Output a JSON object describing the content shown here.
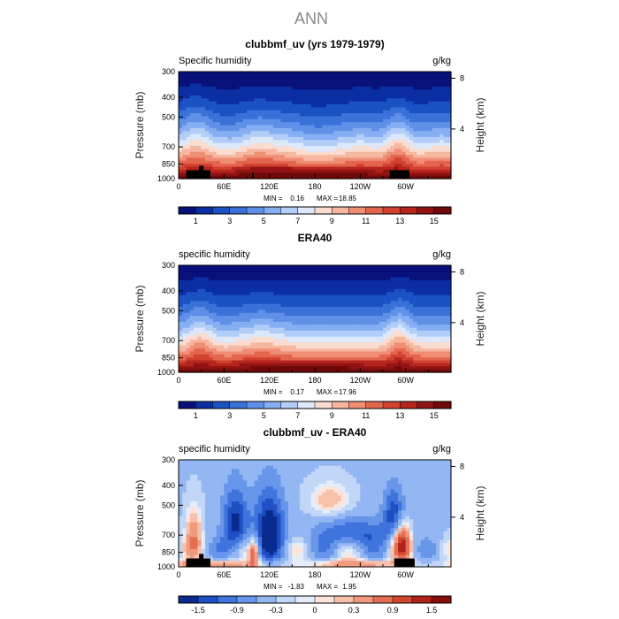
{
  "figure": {
    "title": "ANN"
  },
  "chart_data": [
    {
      "type": "heatmap",
      "title": "clubbmf_uv (yrs 1979-1979)",
      "field_label": "Specific humidity",
      "units": "g/kg",
      "ylabel": "Pressure (mb)",
      "ylabel_right": "Height (km)",
      "x_ticks": [
        "0",
        "60E",
        "120E",
        "180",
        "120W",
        "60W"
      ],
      "x_tick_values": [
        0,
        60,
        120,
        180,
        240,
        300
      ],
      "xlim": [
        0,
        360
      ],
      "y_ticks": [
        "300",
        "400",
        "500",
        "700",
        "850",
        "1000"
      ],
      "y_tick_values": [
        300,
        400,
        500,
        700,
        850,
        1000
      ],
      "ylim": [
        1000,
        300
      ],
      "right_ticks": [
        "8",
        "4"
      ],
      "right_tick_values": [
        8,
        4
      ],
      "stats": {
        "min_label": "MIN =",
        "min": "0.16",
        "max_label": "MAX =",
        "max": "18.85"
      },
      "colorbar_labels": [
        "1",
        "3",
        "5",
        "7",
        "9",
        "11",
        "13",
        "15"
      ],
      "colorbar_values": [
        1,
        3,
        5,
        7,
        9,
        11,
        13,
        15
      ],
      "colorbar_range": [
        0,
        16
      ],
      "terrain_blocks": [
        [
          10,
          42,
          1000,
          910
        ],
        [
          27,
          33,
          910,
          865
        ],
        [
          97,
          99,
          1000,
          935
        ],
        [
          279,
          305,
          1000,
          910
        ]
      ]
    },
    {
      "type": "heatmap",
      "title": "ERA40",
      "field_label": "specific humidity",
      "units": "g/kg",
      "ylabel": "Pressure (mb)",
      "ylabel_right": "Height (km)",
      "x_ticks": [
        "0",
        "60E",
        "120E",
        "180",
        "120W",
        "60W"
      ],
      "x_tick_values": [
        0,
        60,
        120,
        180,
        240,
        300
      ],
      "xlim": [
        0,
        360
      ],
      "y_ticks": [
        "300",
        "400",
        "500",
        "700",
        "850",
        "1000"
      ],
      "y_tick_values": [
        300,
        400,
        500,
        700,
        850,
        1000
      ],
      "ylim": [
        1000,
        300
      ],
      "right_ticks": [
        "8",
        "4"
      ],
      "right_tick_values": [
        8,
        4
      ],
      "stats": {
        "min_label": "MIN =",
        "min": "0.17",
        "max_label": "MAX =",
        "max": "17.96"
      },
      "colorbar_labels": [
        "1",
        "3",
        "5",
        "7",
        "9",
        "11",
        "13",
        "15"
      ],
      "colorbar_values": [
        1,
        3,
        5,
        7,
        9,
        11,
        13,
        15
      ],
      "colorbar_range": [
        0,
        16
      ],
      "terrain_blocks": []
    },
    {
      "type": "heatmap",
      "title": "clubbmf_uv - ERA40",
      "field_label": "specific humidity",
      "units": "g/kg",
      "ylabel": "Pressure (mb)",
      "ylabel_right": "Height (km)",
      "x_ticks": [
        "0",
        "60E",
        "120E",
        "180",
        "120W",
        "60W"
      ],
      "x_tick_values": [
        0,
        60,
        120,
        180,
        240,
        300
      ],
      "xlim": [
        0,
        360
      ],
      "y_ticks": [
        "300",
        "400",
        "500",
        "700",
        "850",
        "1000"
      ],
      "y_tick_values": [
        300,
        400,
        500,
        700,
        850,
        1000
      ],
      "ylim": [
        1000,
        300
      ],
      "right_ticks": [
        "8",
        "4"
      ],
      "right_tick_values": [
        8,
        4
      ],
      "stats": {
        "min_label": "MIN =",
        "min": "-1.83",
        "max_label": "MAX =",
        "max": "1.95"
      },
      "colorbar_labels": [
        "-1.5",
        "-0.9",
        "-0.3",
        "0",
        "0.3",
        "0.9",
        "1.5"
      ],
      "colorbar_values": [
        -1.5,
        -0.9,
        -0.3,
        0,
        0.3,
        0.9,
        1.5
      ],
      "colorbar_range": [
        -2,
        2
      ],
      "terrain_blocks": [
        [
          10,
          42,
          1000,
          910
        ],
        [
          27,
          33,
          910,
          865
        ],
        [
          285,
          312,
          1000,
          910
        ]
      ]
    }
  ]
}
